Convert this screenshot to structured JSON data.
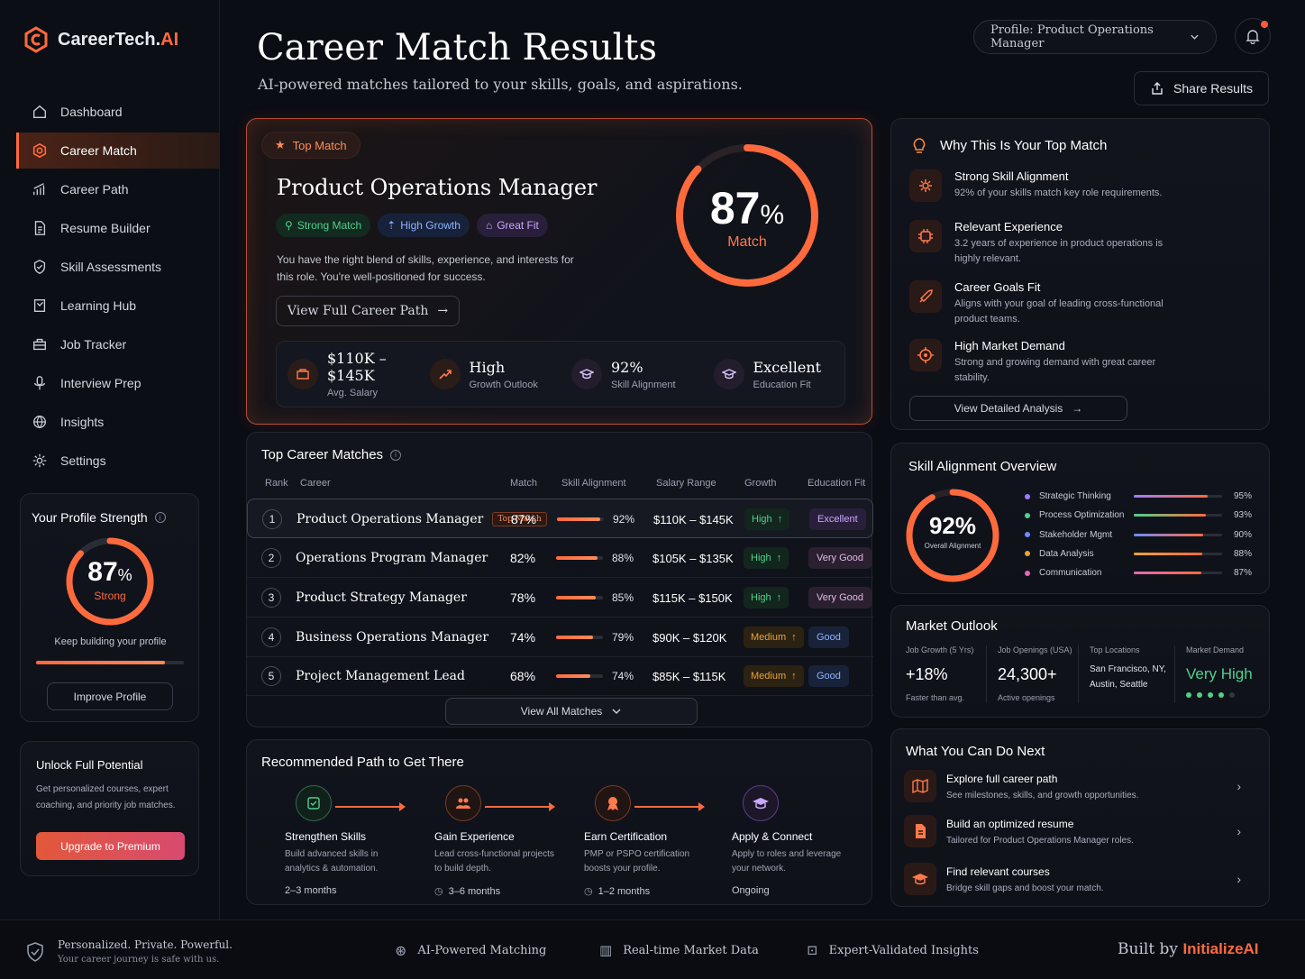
{
  "brand": {
    "name_main": "CareerTech.",
    "name_ai": "AI"
  },
  "nav": [
    {
      "label": "Dashboard",
      "icon": "home-icon"
    },
    {
      "label": "Career Match",
      "icon": "target-icon",
      "active": true
    },
    {
      "label": "Career Path",
      "icon": "chart-icon"
    },
    {
      "label": "Resume Builder",
      "icon": "document-icon"
    },
    {
      "label": "Skill Assessments",
      "icon": "shield-check-icon"
    },
    {
      "label": "Learning Hub",
      "icon": "book-icon"
    },
    {
      "label": "Job Tracker",
      "icon": "briefcase-icon"
    },
    {
      "label": "Interview Prep",
      "icon": "microphone-icon"
    },
    {
      "label": "Insights",
      "icon": "globe-icon"
    },
    {
      "label": "Settings",
      "icon": "gear-icon"
    }
  ],
  "strength": {
    "title": "Your Profile Strength",
    "value": "87",
    "pct": "%",
    "label": "Strong",
    "progress": 0.87,
    "note": "Keep building your profile",
    "button": "Improve Profile"
  },
  "unlock": {
    "title": "Unlock Full Potential",
    "desc": "Get personalized courses, expert coaching, and priority job matches.",
    "button": "Upgrade to Premium"
  },
  "header": {
    "title": "Career Match Results",
    "subtitle": "AI-powered matches tailored to your skills, goals, and aspirations.",
    "profile_select": "Profile: Product Operations Manager",
    "share": "Share Results"
  },
  "top_match": {
    "badge": "Top Match",
    "role": "Product Operations Manager",
    "tags": [
      "Strong Match",
      "High Growth",
      "Great Fit"
    ],
    "desc": "You have the right blend of skills, experience, and interests for this role. You're well-positioned for success.",
    "button": "View Full Career Path",
    "score": "87",
    "pct": "%",
    "score_label": "Match",
    "progress": 0.87,
    "stats": [
      {
        "value": "$110K – $145K",
        "label": "Avg. Salary"
      },
      {
        "value": "High",
        "label": "Growth Outlook"
      },
      {
        "value": "92%",
        "label": "Skill Alignment"
      },
      {
        "value": "Excellent",
        "label": "Education Fit"
      }
    ]
  },
  "why": {
    "title": "Why This Is Your Top Match",
    "items": [
      {
        "title": "Strong Skill Alignment",
        "desc": "92% of your skills match key role requirements."
      },
      {
        "title": "Relevant Experience",
        "desc": "3.2 years of experience in product operations is highly relevant."
      },
      {
        "title": "Career Goals Fit",
        "desc": "Aligns with your goal of leading cross-functional product teams."
      },
      {
        "title": "High Market Demand",
        "desc": "Strong and growing demand with great career stability."
      }
    ],
    "button": "View Detailed Analysis"
  },
  "matches": {
    "title": "Top Career Matches",
    "headers": [
      "Rank",
      "Career",
      "Match",
      "Skill Alignment",
      "Salary Range",
      "Growth",
      "Education Fit"
    ],
    "top_tag": "Top Match",
    "rows": [
      {
        "rank": "1",
        "career": "Product Operations Manager",
        "match": "87%",
        "skill": "92%",
        "skill_v": 0.92,
        "salary": "$110K – $145K",
        "growth": "High",
        "edu": "Excellent"
      },
      {
        "rank": "2",
        "career": "Operations Program Manager",
        "match": "82%",
        "skill": "88%",
        "skill_v": 0.88,
        "salary": "$105K – $135K",
        "growth": "High",
        "edu": "Very Good"
      },
      {
        "rank": "3",
        "career": "Product Strategy Manager",
        "match": "78%",
        "skill": "85%",
        "skill_v": 0.85,
        "salary": "$115K – $150K",
        "growth": "High",
        "edu": "Very Good"
      },
      {
        "rank": "4",
        "career": "Business Operations Manager",
        "match": "74%",
        "skill": "79%",
        "skill_v": 0.79,
        "salary": "$90K – $120K",
        "growth": "Medium",
        "edu": "Good"
      },
      {
        "rank": "5",
        "career": "Project Management Lead",
        "match": "68%",
        "skill": "74%",
        "skill_v": 0.74,
        "salary": "$85K – $115K",
        "growth": "Medium",
        "edu": "Good"
      }
    ],
    "view_all": "View All Matches"
  },
  "skill_overview": {
    "title": "Skill Alignment Overview",
    "value": "92%",
    "label": "Overall Alignment",
    "progress": 0.92,
    "skills": [
      {
        "name": "Strategic Thinking",
        "value": "95%",
        "v": 0.95,
        "color": "#9b7bff"
      },
      {
        "name": "Process Optimization",
        "value": "93%",
        "v": 0.93,
        "color": "#4fd18b"
      },
      {
        "name": "Stakeholder Mgmt",
        "value": "90%",
        "v": 0.9,
        "color": "#6f8bff"
      },
      {
        "name": "Data Analysis",
        "value": "88%",
        "v": 0.88,
        "color": "#e8a33a"
      },
      {
        "name": "Communication",
        "value": "87%",
        "v": 0.87,
        "color": "#e06bb5"
      }
    ]
  },
  "market": {
    "title": "Market Outlook",
    "cols": [
      {
        "head": "Job Growth (5 Yrs)",
        "value": "+18%",
        "sub": "Faster than avg."
      },
      {
        "head": "Job Openings (USA)",
        "value": "24,300+",
        "sub": "Active openings"
      },
      {
        "head": "Top Locations",
        "value": "San Francisco, NY, Austin, Seattle"
      },
      {
        "head": "Market Demand",
        "value": "Very High",
        "dots": 4,
        "dots_total": 5
      }
    ]
  },
  "next": {
    "title": "What You Can Do Next",
    "items": [
      {
        "title": "Explore full career path",
        "desc": "See milestones, skills, and growth opportunities."
      },
      {
        "title": "Build an optimized resume",
        "desc": "Tailored for Product Operations Manager roles."
      },
      {
        "title": "Find relevant courses",
        "desc": "Bridge skill gaps and boost your match."
      }
    ]
  },
  "path": {
    "title": "Recommended Path to Get There",
    "steps": [
      {
        "title": "Strengthen Skills",
        "desc": "Build advanced skills in analytics & automation.",
        "duration": "2–3 months"
      },
      {
        "title": "Gain Experience",
        "desc": "Lead cross-functional projects to build depth.",
        "duration": "3–6 months"
      },
      {
        "title": "Earn Certification",
        "desc": "PMP or PSPO certification boosts your profile.",
        "duration": "1–2 months"
      },
      {
        "title": "Apply & Connect",
        "desc": "Apply to roles and leverage your network.",
        "duration": "Ongoing"
      }
    ]
  },
  "footer": {
    "tagline": "Personalized. Private. Powerful.",
    "tagline_sub": "Your career journey is safe with us.",
    "features": [
      "AI-Powered Matching",
      "Real-time Market Data",
      "Expert-Validated Insights"
    ],
    "built_by": "Built by",
    "built_brand": "InitializeAI"
  }
}
